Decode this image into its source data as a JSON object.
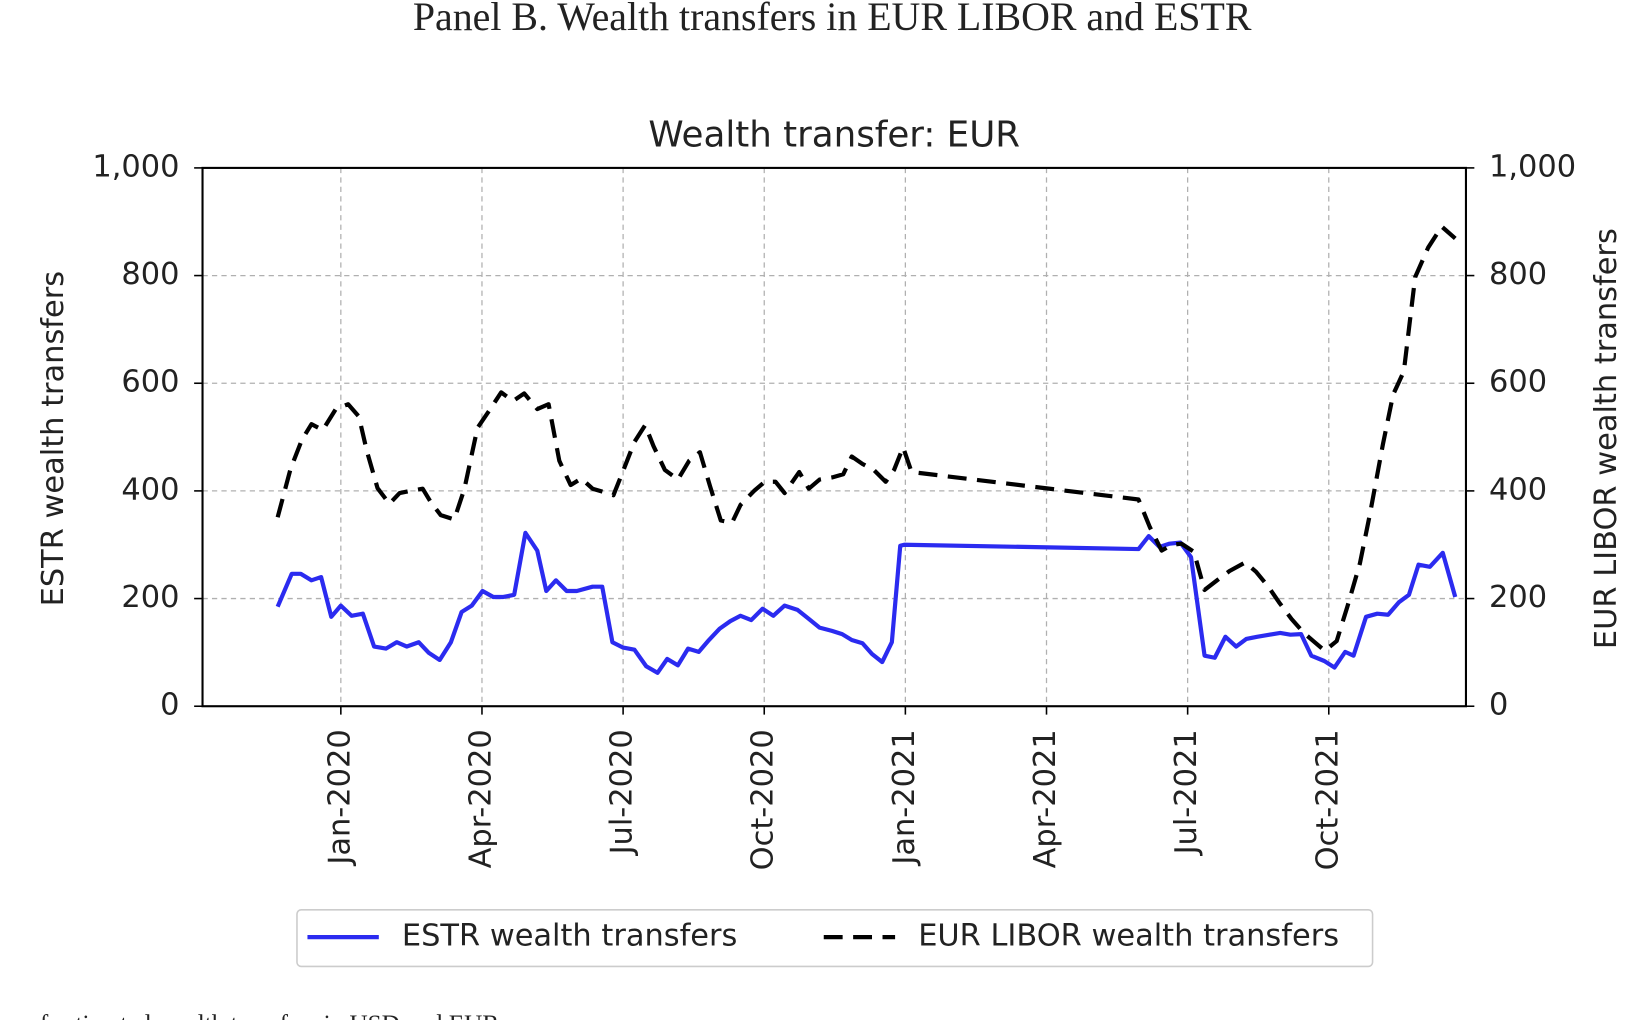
{
  "title": "Panel B. Wealth transfers in EUR LIBOR and ESTR",
  "caption": "es of estimated wealth transfers in USD and EUR",
  "chart_data": {
    "type": "line",
    "title": "Wealth transfer: EUR",
    "y_label": "ESTR wealth transfers",
    "y2_label": "EUR LIBOR wealth transfers",
    "xlim": [
      2019.755,
      2021.993
    ],
    "xticks": [
      {
        "value": 2020.0,
        "label": "Jan-2020"
      },
      {
        "value": 2020.25,
        "label": "Apr-2020"
      },
      {
        "value": 2020.5,
        "label": "Jul-2020"
      },
      {
        "value": 2020.75,
        "label": "Oct-2020"
      },
      {
        "value": 2021.0,
        "label": "Jan-2021"
      },
      {
        "value": 2021.25,
        "label": "Apr-2021"
      },
      {
        "value": 2021.5,
        "label": "Jul-2021"
      },
      {
        "value": 2021.75,
        "label": "Oct-2021"
      }
    ],
    "ylim": [
      0,
      1000
    ],
    "yticks": [
      0,
      200,
      400,
      600,
      800,
      {
        "value": 1000,
        "label": "1,000"
      }
    ],
    "y2lim": [
      0,
      1000
    ],
    "y2ticks": [
      0,
      200,
      400,
      600,
      800,
      {
        "value": 1000,
        "label": "1,000"
      }
    ],
    "grid": true,
    "legend": "bottom",
    "series": [
      {
        "name": "ESTR wealth transfers",
        "color": "#2b2bf0",
        "dash": "solid",
        "x": [
          2019.888,
          2019.913,
          2019.929,
          2019.948,
          2019.965,
          2019.983,
          2020.0,
          2020.019,
          2020.039,
          2020.059,
          2020.08,
          2020.099,
          2020.117,
          2020.138,
          2020.156,
          2020.175,
          2020.195,
          2020.214,
          2020.232,
          2020.251,
          2020.27,
          2020.288,
          2020.307,
          2020.327,
          2020.348,
          2020.364,
          2020.381,
          2020.4,
          2020.418,
          2020.446,
          2020.463,
          2020.481,
          2020.5,
          2020.52,
          2020.541,
          2020.561,
          2020.578,
          2020.597,
          2020.615,
          2020.634,
          2020.652,
          2020.671,
          2020.69,
          2020.708,
          2020.727,
          2020.747,
          2020.766,
          2020.786,
          2020.809,
          2020.827,
          2020.848,
          2020.87,
          2020.888,
          2020.905,
          2020.924,
          2020.941,
          2020.959,
          2020.976,
          2020.991,
          2020.998,
          2021.413,
          2021.431,
          2021.45,
          2021.468,
          2021.487,
          2021.506,
          2021.53,
          2021.548,
          2021.567,
          2021.586,
          2021.604,
          2021.623,
          2021.645,
          2021.664,
          2021.682,
          2021.701,
          2021.719,
          2021.742,
          2021.76,
          2021.779,
          2021.794,
          2021.816,
          2021.836,
          2021.855,
          2021.874,
          2021.892,
          2021.909,
          2021.929,
          2021.952,
          2021.974
        ],
        "values": [
          185,
          246,
          246,
          234,
          240,
          166,
          187,
          168,
          172,
          111,
          107,
          119,
          111,
          119,
          99,
          86,
          119,
          175,
          187,
          214,
          203,
          203,
          207,
          322,
          289,
          214,
          234,
          214,
          214,
          222,
          222,
          119,
          109,
          105,
          74,
          62,
          88,
          76,
          107,
          101,
          123,
          144,
          158,
          168,
          160,
          181,
          168,
          187,
          179,
          164,
          146,
          140,
          134,
          123,
          117,
          97,
          82,
          119,
          298,
          300,
          292,
          316,
          296,
          302,
          304,
          277,
          94,
          90,
          129,
          111,
          125,
          129,
          133,
          136,
          133,
          134,
          94,
          84,
          72,
          101,
          94,
          166,
          172,
          170,
          193,
          207,
          263,
          259,
          285,
          203
        ]
      },
      {
        "name": "EUR LIBOR wealth transfers",
        "color": "#000000",
        "dash": "dashed",
        "axis": "y2",
        "x": [
          2019.888,
          2019.911,
          2019.931,
          2019.948,
          2019.968,
          2019.991,
          2020.013,
          2020.032,
          2020.046,
          2020.065,
          2020.086,
          2020.104,
          2020.123,
          2020.145,
          2020.16,
          2020.177,
          2020.201,
          2020.219,
          2020.242,
          2020.262,
          2020.284,
          2020.305,
          2020.325,
          2020.348,
          2020.368,
          2020.387,
          2020.407,
          2020.426,
          2020.446,
          2020.465,
          2020.483,
          2020.5,
          2020.52,
          2020.539,
          2020.554,
          2020.574,
          2020.597,
          2020.617,
          2020.636,
          2020.654,
          2020.673,
          2020.693,
          2020.708,
          2020.732,
          2020.751,
          2020.77,
          2020.786,
          2020.812,
          2020.829,
          2020.848,
          2020.87,
          2020.89,
          2020.905,
          2020.924,
          2020.944,
          2020.965,
          2020.98,
          2020.996,
          2021.011,
          2021.413,
          2021.433,
          2021.454,
          2021.472,
          2021.489,
          2021.511,
          2021.53,
          2021.552,
          2021.574,
          2021.602,
          2021.621,
          2021.643,
          2021.662,
          2021.684,
          2021.706,
          2021.725,
          2021.743,
          2021.764,
          2021.783,
          2021.805,
          2021.823,
          2021.846,
          2021.864,
          2021.883,
          2021.903,
          2021.926,
          2021.95,
          2021.974
        ],
        "values": [
          351,
          441,
          495,
          524,
          513,
          552,
          561,
          538,
          474,
          405,
          376,
          396,
          400,
          404,
          378,
          355,
          347,
          404,
          517,
          548,
          583,
          567,
          581,
          552,
          561,
          456,
          411,
          423,
          404,
          398,
          392,
          437,
          491,
          522,
          483,
          439,
          421,
          456,
          472,
          409,
          345,
          341,
          374,
          400,
          417,
          417,
          396,
          435,
          404,
          421,
          425,
          431,
          464,
          450,
          439,
          417,
          439,
          481,
          435,
          384,
          333,
          289,
          300,
          302,
          287,
          216,
          234,
          251,
          267,
          250,
          222,
          193,
          162,
          136,
          119,
          103,
          121,
          185,
          265,
          357,
          487,
          579,
          622,
          797,
          852,
          891,
          869
        ]
      }
    ]
  }
}
